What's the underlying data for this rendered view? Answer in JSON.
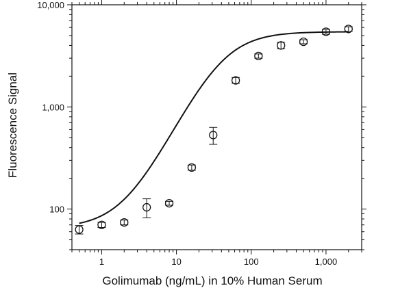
{
  "chart_data": {
    "type": "scatter",
    "xlabel": "Golimumab (ng/mL) in 10% Human Serum",
    "ylabel": "Fluorescence Signal",
    "x_scale": "log",
    "y_scale": "log",
    "xlim": [
      0.4,
      3000
    ],
    "ylim": [
      40,
      10000
    ],
    "x_ticks": [
      {
        "value": 1,
        "label": "1"
      },
      {
        "value": 10,
        "label": "10"
      },
      {
        "value": 100,
        "label": "100"
      },
      {
        "value": 1000,
        "label": "1,000"
      }
    ],
    "y_ticks": [
      {
        "value": 100,
        "label": "100"
      },
      {
        "value": 1000,
        "label": "1,000"
      },
      {
        "value": 10000,
        "label": "10,000"
      }
    ],
    "grid": false,
    "points": [
      {
        "x": 0.5,
        "y": 63,
        "err": 6
      },
      {
        "x": 1,
        "y": 70,
        "err": 4
      },
      {
        "x": 2,
        "y": 74,
        "err": 4
      },
      {
        "x": 4,
        "y": 104,
        "err": 22
      },
      {
        "x": 8,
        "y": 114,
        "err": 5
      },
      {
        "x": 16,
        "y": 255,
        "err": 15
      },
      {
        "x": 31,
        "y": 530,
        "err": 100
      },
      {
        "x": 62,
        "y": 1820,
        "err": 120
      },
      {
        "x": 125,
        "y": 3150,
        "err": 150
      },
      {
        "x": 250,
        "y": 4000,
        "err": 300
      },
      {
        "x": 500,
        "y": 4350,
        "err": 200
      },
      {
        "x": 1000,
        "y": 5450,
        "err": 300
      },
      {
        "x": 2000,
        "y": 5800,
        "err": 300
      }
    ],
    "fit_curve": {
      "type": "4PL",
      "bottom": 65,
      "top": 5450,
      "ec50": 40,
      "hill": 1.5,
      "x_range": [
        0.5,
        2000
      ]
    }
  }
}
